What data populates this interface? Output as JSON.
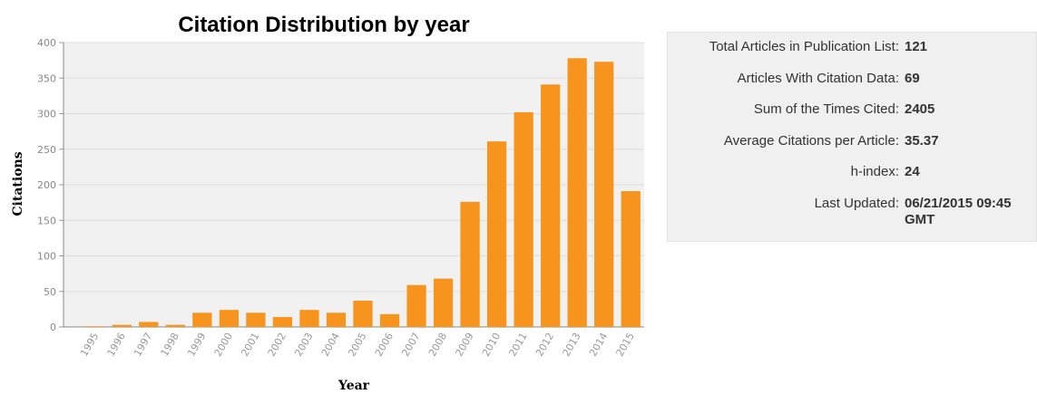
{
  "chart_data": {
    "type": "bar",
    "title": "Citation Distribution by year",
    "xlabel": "Year",
    "ylabel": "Citations",
    "ylim": [
      0,
      400
    ],
    "yticks": [
      0,
      50,
      100,
      150,
      200,
      250,
      300,
      350,
      400
    ],
    "grid": true,
    "legend": "none",
    "bar_color": "#f7941d",
    "categories": [
      "1995",
      "1996",
      "1997",
      "1998",
      "1999",
      "2000",
      "2001",
      "2002",
      "2003",
      "2004",
      "2005",
      "2006",
      "2007",
      "2008",
      "2009",
      "2010",
      "2011",
      "2012",
      "2013",
      "2014",
      "2015"
    ],
    "values": [
      1,
      3,
      7,
      3,
      20,
      24,
      20,
      14,
      24,
      20,
      37,
      18,
      59,
      68,
      176,
      261,
      302,
      341,
      378,
      373,
      191
    ]
  },
  "stats": {
    "items": [
      {
        "label": "Total Articles in Publication List:",
        "value": "121"
      },
      {
        "label": "Articles With Citation Data:",
        "value": "69"
      },
      {
        "label": "Sum of the Times Cited:",
        "value": "2405"
      },
      {
        "label": "Average Citations per Article:",
        "value": "35.37"
      },
      {
        "label": "h-index:",
        "value": "24"
      },
      {
        "label": "Last Updated:",
        "value": "06/21/2015 09:45 GMT"
      }
    ]
  }
}
